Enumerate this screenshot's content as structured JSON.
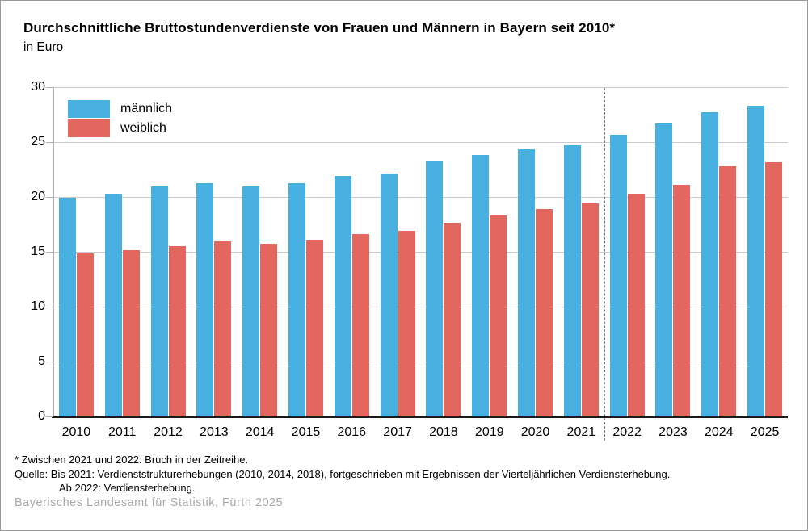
{
  "header": {
    "title": "Durchschnittliche Bruttostundenverdienste von Frauen und Männern in Bayern seit 2010*",
    "subtitle": "in Euro"
  },
  "chart_data": {
    "type": "bar",
    "title": "Durchschnittliche Bruttostundenverdienste von Frauen und Männern in Bayern seit 2010*",
    "subtitle": "in Euro",
    "categories": [
      "2010",
      "2011",
      "2012",
      "2013",
      "2014",
      "2015",
      "2016",
      "2017",
      "2018",
      "2019",
      "2020",
      "2021",
      "2022",
      "2023",
      "2024",
      "2025"
    ],
    "series": [
      {
        "name": "männlich",
        "color": "#48B0E0",
        "values": [
          20.0,
          20.4,
          21.0,
          21.3,
          21.0,
          21.3,
          22.0,
          22.2,
          23.3,
          23.9,
          24.4,
          24.8,
          25.7,
          26.8,
          27.8,
          28.4
        ]
      },
      {
        "name": "weiblich",
        "color": "#E3665F",
        "values": [
          14.9,
          15.2,
          15.6,
          16.0,
          15.8,
          16.1,
          16.7,
          17.0,
          17.7,
          18.4,
          19.0,
          19.5,
          20.4,
          21.2,
          22.9,
          23.2
        ]
      }
    ],
    "xlabel": "",
    "ylabel": "",
    "ylim": [
      0,
      30
    ],
    "ytick_step": 5,
    "grid": true,
    "legend_position": "top-left",
    "series_break": {
      "after_category": "2021",
      "note": "Bruch in der Zeitreihe, dargestellt als vertikale gestrichelte Linie"
    }
  },
  "footnotes": {
    "line1": "* Zwischen 2021 und 2022: Bruch in der Zeitreihe.",
    "line2": "Quelle: Bis 2021: Verdienststrukturerhebungen (2010, 2014, 2018), fortgeschrieben mit Ergebnissen der Vierteljährlichen Verdiensterhebung.",
    "line3": "Ab 2022: Verdiensterhebung."
  },
  "footer": {
    "credit": "Bayerisches Landesamt für Statistik, Fürth 2025"
  }
}
